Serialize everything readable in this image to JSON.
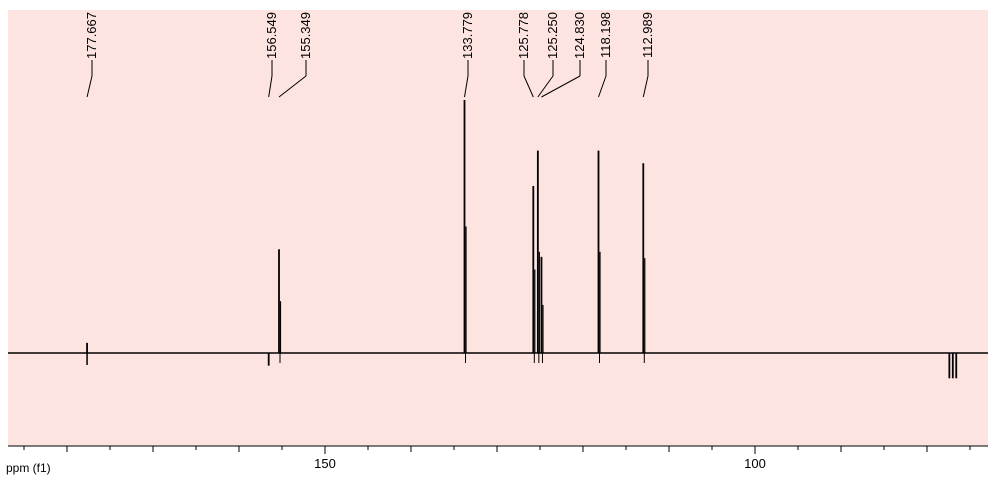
{
  "chart_data": {
    "type": "line",
    "xlabel": "ppm (f1)",
    "ylabel": "",
    "x_reversed": true,
    "xlim": [
      188,
      74
    ],
    "x_ticks": [
      150,
      100
    ],
    "grid": false,
    "peaks": [
      {
        "label": "177.667",
        "ppm": 177.667,
        "intensity": 0.04,
        "phase": "mixed"
      },
      {
        "label": "156.549",
        "ppm": 156.549,
        "intensity": -0.05,
        "phase": "negative"
      },
      {
        "label": "155.349",
        "ppm": 155.349,
        "intensity": 0.41,
        "phase": "positive"
      },
      {
        "label": "133.779",
        "ppm": 133.779,
        "intensity": 1.0,
        "phase": "positive"
      },
      {
        "label": "125.778",
        "ppm": 125.778,
        "intensity": 0.66,
        "phase": "positive"
      },
      {
        "label": "125.250",
        "ppm": 125.25,
        "intensity": 0.8,
        "phase": "positive"
      },
      {
        "label": "124.830",
        "ppm": 124.83,
        "intensity": 0.38,
        "phase": "positive"
      },
      {
        "label": "118.198",
        "ppm": 118.198,
        "intensity": 0.8,
        "phase": "positive"
      },
      {
        "label": "112.989",
        "ppm": 112.989,
        "intensity": 0.75,
        "phase": "positive"
      }
    ],
    "unlabeled_signals": [
      {
        "ppm": 77.4,
        "intensity": -0.1
      },
      {
        "ppm": 77.0,
        "intensity": -0.1
      },
      {
        "ppm": 76.6,
        "intensity": -0.1
      }
    ]
  },
  "colors": {
    "plot_background": "#fde4e1",
    "trace": "#000000"
  }
}
